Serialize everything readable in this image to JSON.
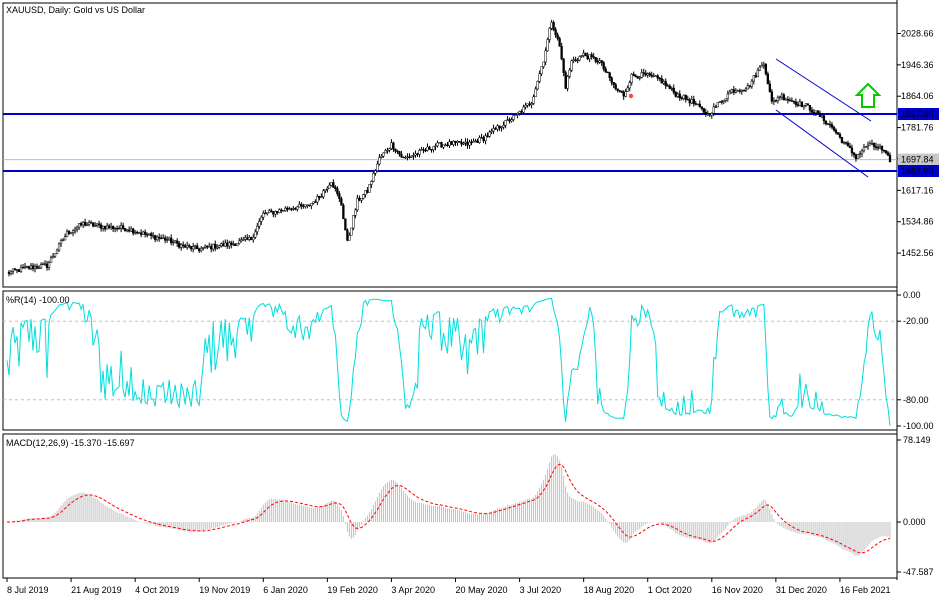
{
  "chart_data": [
    {
      "type": "candlestick",
      "title": "XAUUSD, Daily:  Gold vs US Dollar",
      "ylim": [
        1400,
        2080
      ],
      "y_ticks": [
        "2028.66",
        "1946.36",
        "1864.06",
        "1781.76",
        "1699.46",
        "1617.16",
        "1534.86",
        "1452.56"
      ],
      "y_tick_values": [
        2028.66,
        1946.36,
        1864.06,
        1781.76,
        1699.46,
        1617.16,
        1534.86,
        1452.56
      ],
      "x_ticks": [
        "8 Jul 2019",
        "21 Aug 2019",
        "4 Oct 2019",
        "19 Nov 2019",
        "6 Jan 2020",
        "19 Feb 2020",
        "3 Apr 2020",
        "20 May 2020",
        "3 Jul 2020",
        "18 Aug 2020",
        "1 Oct 2020",
        "16 Nov 2020",
        "31 Dec 2020",
        "16 Feb 2021"
      ],
      "x_tick_index": [
        0,
        32,
        64,
        96,
        128,
        160,
        192,
        224,
        256,
        288,
        320,
        352,
        384,
        416
      ],
      "price_series": {
        "name": "Close",
        "knots_index": [
          0,
          10,
          20,
          30,
          38,
          48,
          60,
          72,
          80,
          88,
          96,
          104,
          112,
          122,
          128,
          134,
          142,
          150,
          156,
          162,
          167,
          170,
          175,
          180,
          186,
          192,
          198,
          206,
          214,
          222,
          230,
          238,
          246,
          254,
          262,
          268,
          272,
          276,
          279,
          282,
          288,
          296,
          304,
          308,
          312,
          318,
          326,
          334,
          342,
          350,
          356,
          362,
          370,
          378,
          382,
          386,
          392,
          400,
          406,
          412,
          418,
          424,
          430,
          436,
          441
        ],
        "knots_value": [
          1400,
          1414,
          1420,
          1505,
          1530,
          1522,
          1517,
          1497,
          1488,
          1470,
          1463,
          1471,
          1476,
          1490,
          1555,
          1561,
          1572,
          1575,
          1600,
          1643,
          1580,
          1480,
          1590,
          1615,
          1700,
          1738,
          1700,
          1716,
          1735,
          1740,
          1738,
          1754,
          1785,
          1812,
          1850,
          1960,
          2062,
          1995,
          1890,
          1955,
          1973,
          1955,
          1883,
          1867,
          1917,
          1920,
          1908,
          1870,
          1850,
          1815,
          1848,
          1879,
          1887,
          1955,
          1846,
          1866,
          1852,
          1836,
          1812,
          1783,
          1742,
          1705,
          1737,
          1728,
          1697
        ]
      },
      "horizontal_lines": [
        1817.4,
        1667.9
      ],
      "price_labels": [
        "1817.40",
        "1697.84",
        "1667.90"
      ],
      "price_label_values": [
        1817.4,
        1697.84,
        1667.9
      ],
      "annotations": [
        "channel",
        "up-arrow"
      ],
      "colors": {
        "line": "#0000cc",
        "candle": "#000000",
        "arrow": "#00cc00"
      }
    },
    {
      "type": "line",
      "title": "%R(14) -100.00",
      "ylim": [
        -100,
        0
      ],
      "y_ticks": [
        "0.00",
        "-20.00",
        "-80.00",
        "-100.00"
      ],
      "y_tick_values": [
        0,
        -20,
        -80,
        -100
      ],
      "series": [
        {
          "name": "%R(14)",
          "color": "#00dddd"
        }
      ]
    },
    {
      "type": "bar",
      "title": "MACD(12,26,9) -15.370 -15.697",
      "ylim": [
        -47.587,
        78.149
      ],
      "y_ticks": [
        "78.149",
        "0.000",
        "-47.587"
      ],
      "y_tick_values": [
        78.149,
        0,
        -47.587
      ],
      "series": [
        {
          "name": "MACD",
          "color": "#c0c0c0"
        },
        {
          "name": "Signal",
          "color": "#ff0000"
        }
      ]
    }
  ]
}
